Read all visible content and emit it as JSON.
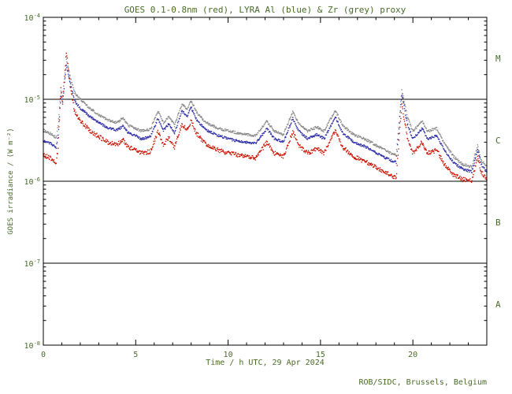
{
  "credit": "ROB/SIDC, Brussels, Belgium",
  "colors": {
    "text": "#4a6b2a",
    "frame": "#000000",
    "background": "#ffffff",
    "goes_red": "#cc1100",
    "lyra_al_blue": "#3333aa",
    "lyra_zr_grey": "#8a8a8a"
  },
  "chart_data": {
    "type": "scatter",
    "title": "GOES 0.1-0.8nm (red), LYRA Al (blue) & Zr (grey) proxy",
    "xlabel": "Time / h UTC, 29 Apr 2024",
    "ylabel": "GOES irradiance / (W m⁻²)",
    "x_range": [
      0,
      24
    ],
    "y_range_log": [
      -8,
      -4
    ],
    "x_ticks": [
      0,
      5,
      10,
      15,
      20
    ],
    "y_tick_exponents": [
      -8,
      -7,
      -6,
      -5,
      -4
    ],
    "grid": false,
    "legend": "in title (color-coded)",
    "class_lines": [
      1e-05,
      1e-06,
      1e-07
    ],
    "class_labels": [
      {
        "label": "M",
        "log": -4.5
      },
      {
        "label": "C",
        "log": -5.5
      },
      {
        "label": "B",
        "log": -6.5
      },
      {
        "label": "A",
        "log": -7.5
      }
    ],
    "x": [
      0,
      0.4,
      0.7,
      0.8,
      0.95,
      1.05,
      1.25,
      1.45,
      1.7,
      2,
      2.5,
      3,
      3.5,
      4,
      4.3,
      4.6,
      5,
      5.3,
      5.8,
      6.2,
      6.5,
      6.8,
      7.1,
      7.5,
      7.8,
      8,
      8.3,
      8.8,
      9.5,
      10,
      10.5,
      11,
      11.5,
      12.1,
      12.5,
      13,
      13.5,
      13.8,
      14.3,
      14.8,
      15.2,
      15.8,
      16.2,
      16.8,
      17.5,
      18.2,
      18.8,
      19.1,
      19.4,
      19.7,
      20,
      20.5,
      20.8,
      21.3,
      21.7,
      22.2,
      22.7,
      23.2,
      23.5,
      23.7,
      24
    ],
    "series": [
      {
        "id": "goes",
        "name": "GOES 0.1-0.8nm",
        "color": "#cc1100",
        "noise": 0.06,
        "values": [
          2.1e-06,
          1.9e-06,
          1.7e-06,
          2.5e-06,
          1.4e-05,
          9e-06,
          3.8e-05,
          1.5e-05,
          7e-06,
          5.5e-06,
          4.2e-06,
          3.5e-06,
          3e-06,
          2.8e-06,
          3.2e-06,
          2.6e-06,
          2.4e-06,
          2.2e-06,
          2.3e-06,
          4e-06,
          2.8e-06,
          3.4e-06,
          2.6e-06,
          5e-06,
          4.2e-06,
          5.5e-06,
          3.8e-06,
          2.8e-06,
          2.4e-06,
          2.2e-06,
          2.1e-06,
          2e-06,
          1.9e-06,
          3e-06,
          2.2e-06,
          2e-06,
          4e-06,
          2.8e-06,
          2.2e-06,
          2.5e-06,
          2.2e-06,
          4.2e-06,
          2.6e-06,
          2e-06,
          1.7e-06,
          1.4e-06,
          1.2e-06,
          1.1e-06,
          8.5e-06,
          3.5e-06,
          2.2e-06,
          3e-06,
          2.2e-06,
          2.4e-06,
          1.6e-06,
          1.2e-06,
          1.05e-06,
          1e-06,
          2e-06,
          1.3e-06,
          1.05e-06
        ]
      },
      {
        "id": "lyra-al",
        "name": "LYRA Al",
        "color": "#3333aa",
        "noise": 0.035,
        "values": [
          3.1e-06,
          2.9e-06,
          2.6e-06,
          3.6e-06,
          1.1e-05,
          9.5e-06,
          2.6e-05,
          1.6e-05,
          9.5e-06,
          7.8e-06,
          6.2e-06,
          5.2e-06,
          4.5e-06,
          4.2e-06,
          4.7e-06,
          3.9e-06,
          3.6e-06,
          3.3e-06,
          3.5e-06,
          5.8e-06,
          4.2e-06,
          5e-06,
          3.9e-06,
          7.2e-06,
          6.2e-06,
          7.9e-06,
          5.6e-06,
          4.2e-06,
          3.6e-06,
          3.3e-06,
          3.1e-06,
          3e-06,
          2.9e-06,
          4.4e-06,
          3.3e-06,
          3e-06,
          5.8e-06,
          4.2e-06,
          3.3e-06,
          3.7e-06,
          3.3e-06,
          6.1e-06,
          3.9e-06,
          3e-06,
          2.6e-06,
          2.1e-06,
          1.8e-06,
          1.7e-06,
          1.15e-05,
          5e-06,
          3.3e-06,
          4.4e-06,
          3.3e-06,
          3.6e-06,
          2.4e-06,
          1.7e-06,
          1.4e-06,
          1.3e-06,
          2.4e-06,
          1.6e-06,
          1.3e-06
        ]
      },
      {
        "id": "lyra-zr",
        "name": "LYRA Zr",
        "color": "#8a8a8a",
        "noise": 0.035,
        "values": [
          4.2e-06,
          3.8e-06,
          3.4e-06,
          4.8e-06,
          1.3e-05,
          1.1e-05,
          3e-05,
          1.9e-05,
          1.2e-05,
          1e-05,
          7.8e-06,
          6.5e-06,
          5.6e-06,
          5.2e-06,
          5.9e-06,
          4.8e-06,
          4.4e-06,
          4.1e-06,
          4.3e-06,
          7.2e-06,
          5.2e-06,
          6.2e-06,
          4.8e-06,
          8.8e-06,
          7.6e-06,
          9.6e-06,
          6.9e-06,
          5.2e-06,
          4.4e-06,
          4.1e-06,
          3.9e-06,
          3.7e-06,
          3.6e-06,
          5.4e-06,
          4.1e-06,
          3.7e-06,
          7.1e-06,
          5.2e-06,
          4.1e-06,
          4.6e-06,
          4.1e-06,
          7.4e-06,
          4.8e-06,
          3.7e-06,
          3.2e-06,
          2.6e-06,
          2.2e-06,
          2.1e-06,
          1.3e-05,
          6.2e-06,
          4.1e-06,
          5.4e-06,
          4.1e-06,
          4.4e-06,
          2.9e-06,
          2e-06,
          1.6e-06,
          1.5e-06,
          2.7e-06,
          1.8e-06,
          1.5e-06
        ]
      }
    ]
  }
}
